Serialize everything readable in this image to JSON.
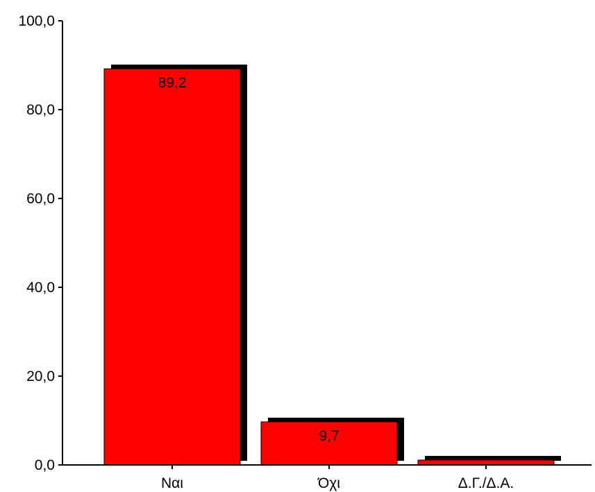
{
  "chart_data": {
    "type": "bar",
    "categories": [
      "Ναι",
      "Όχι",
      "Δ.Γ./Δ.Α."
    ],
    "values": [
      89.2,
      9.7,
      1.1
    ],
    "data_labels": [
      "89,2",
      "9,7",
      ""
    ],
    "ylim": [
      0,
      100
    ],
    "y_ticks": [
      0,
      20,
      40,
      60,
      80,
      100
    ],
    "y_tick_labels": [
      "0,0",
      "20,0",
      "40,0",
      "60,0",
      "80,0",
      "100,0"
    ],
    "grid": false,
    "legend": "none",
    "bar_color": "#ff0000",
    "shadow_color": "#000000"
  }
}
